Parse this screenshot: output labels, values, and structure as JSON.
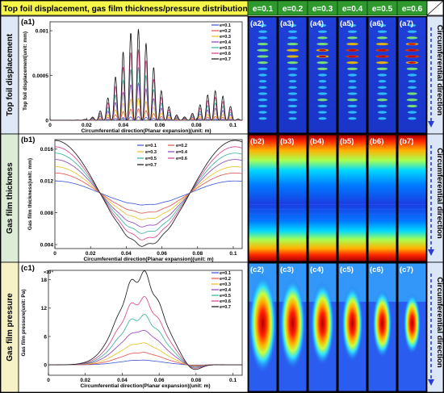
{
  "header": {
    "title": "Top foil displacement, gas film thickness/pressure distribution",
    "e_labels": [
      "e=0.1",
      "e=0.2",
      "e=0.3",
      "e=0.4",
      "e=0.5",
      "e=0.6"
    ],
    "bg": "#f5f54a"
  },
  "side_labels": [
    "Top foil displacement",
    "Gas film thickness",
    "Gas film pressure"
  ],
  "right_labels": [
    "Circumferential direction",
    "Circumferential direction",
    "Circumferential direction"
  ],
  "image_labels": [
    [
      "(a2)",
      "(a3)",
      "(a4)",
      "(a5)",
      "(a6)",
      "(a7)"
    ],
    [
      "(b2)",
      "(b3)",
      "(b4)",
      "(b5)",
      "(b6)",
      "(b7)"
    ],
    [
      "(c2)",
      "(c3)",
      "(c4)",
      "(c5)",
      "(c6)",
      "(c7)"
    ]
  ],
  "chart_data": [
    {
      "type": "line",
      "panel_label": "(a1)",
      "xlabel": "Circumferential direction(Planar expansion)(unit: m)",
      "ylabel": "Top foil displacement(unit: mm)",
      "xlim": [
        0,
        0.105
      ],
      "ylim": [
        0,
        0.0011
      ],
      "xticks": [
        0,
        0.02,
        0.04,
        0.06,
        0.08,
        0.1
      ],
      "xtick_labels": [
        "0",
        "0.02",
        "0.04",
        "0.06",
        "0.08",
        "0.1"
      ],
      "yticks": [
        0,
        0.0005,
        0.001
      ],
      "ytick_labels": [
        "0",
        "0.0005",
        "0.001"
      ],
      "legend_position": "top-right",
      "series": [
        {
          "name": "e=0.1",
          "color": "#3a52d8",
          "peak": 4e-05
        },
        {
          "name": "e=0.2",
          "color": "#e2504a",
          "peak": 0.00013
        },
        {
          "name": "e=0.3",
          "color": "#e8bf1c",
          "peak": 0.00025
        },
        {
          "name": "e=0.4",
          "color": "#8e3fb8",
          "peak": 0.00042
        },
        {
          "name": "e=0.5",
          "color": "#2fb29a",
          "peak": 0.0006
        },
        {
          "name": "e=0.6",
          "color": "#d63d8a",
          "peak": 0.0008
        },
        {
          "name": "e=0.7",
          "color": "#111111",
          "peak": 0.00103
        }
      ]
    },
    {
      "type": "line",
      "panel_label": "(b1)",
      "xlabel": "Circumferential direction(Planar expansion)(unit: m)",
      "ylabel": "Gas film thickness(unit: mm)",
      "xlim": [
        0,
        0.105
      ],
      "ylim": [
        0.0035,
        0.0172
      ],
      "xticks": [
        0,
        0.02,
        0.04,
        0.06,
        0.08,
        0.1
      ],
      "xtick_labels": [
        "0",
        "0.02",
        "0.04",
        "0.06",
        "0.08",
        "0.1"
      ],
      "yticks": [
        0.004,
        0.008,
        0.012,
        0.016
      ],
      "ytick_labels": [
        "0.004",
        "0.008",
        "0.012",
        "0.016"
      ],
      "legend_position": "top-center",
      "series": [
        {
          "name": "e=0.1",
          "color": "#3a52d8",
          "amp": 0.0015
        },
        {
          "name": "e=0.2",
          "color": "#e2504a",
          "amp": 0.0025
        },
        {
          "name": "e=0.3",
          "color": "#e8bf1c",
          "amp": 0.0033
        },
        {
          "name": "e=0.4",
          "color": "#8e3fb8",
          "amp": 0.0042
        },
        {
          "name": "e=0.5",
          "color": "#2fb29a",
          "amp": 0.005
        },
        {
          "name": "e=0.6",
          "color": "#d63d8a",
          "amp": 0.0058
        },
        {
          "name": "e=0.7",
          "color": "#111111",
          "amp": 0.0066
        }
      ]
    },
    {
      "type": "line",
      "panel_label": "(c1)",
      "xlabel": "Circumferential direction(Planar expansion)(unit: m)",
      "ylabel": "Gas film pressure(unit: Pa)",
      "y_multiplier": "×10⁴",
      "xlim": [
        0,
        0.105
      ],
      "ylim": [
        -2.2,
        20
      ],
      "xticks": [
        0,
        0.02,
        0.04,
        0.06,
        0.08,
        0.1
      ],
      "xtick_labels": [
        "0",
        "0.02",
        "0.04",
        "0.06",
        "0.08",
        "0.1"
      ],
      "yticks": [
        0,
        6,
        12,
        18
      ],
      "ytick_labels": [
        "0",
        "6",
        "12",
        "18"
      ],
      "legend_position": "top-right",
      "series": [
        {
          "name": "e=0.1",
          "color": "#3a52d8",
          "peak": 1.0
        },
        {
          "name": "e=0.2",
          "color": "#e2504a",
          "peak": 2.6
        },
        {
          "name": "e=0.3",
          "color": "#e8bf1c",
          "peak": 4.6
        },
        {
          "name": "e=0.4",
          "color": "#8e3fb8",
          "peak": 7.2
        },
        {
          "name": "e=0.5",
          "color": "#2fb29a",
          "peak": 10.2
        },
        {
          "name": "e=0.6",
          "color": "#d63d8a",
          "peak": 13.8
        },
        {
          "name": "e=0.7",
          "color": "#111111",
          "peak": 19.0
        }
      ]
    }
  ]
}
